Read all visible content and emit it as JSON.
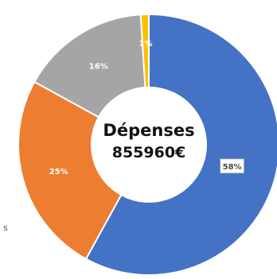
{
  "chart_data": {
    "type": "pie",
    "donut": true,
    "center_title": "Dépenses",
    "center_value": "855960€",
    "slices": [
      {
        "label": "58%",
        "value": 58,
        "color": "#4472c4"
      },
      {
        "label": "25%",
        "value": 25,
        "color": "#ed7d31"
      },
      {
        "label": "16%",
        "value": 16,
        "color": "#a5a5a5"
      },
      {
        "label": "1%",
        "value": 1,
        "color": "#ffc000"
      }
    ],
    "stray_label": "s"
  }
}
